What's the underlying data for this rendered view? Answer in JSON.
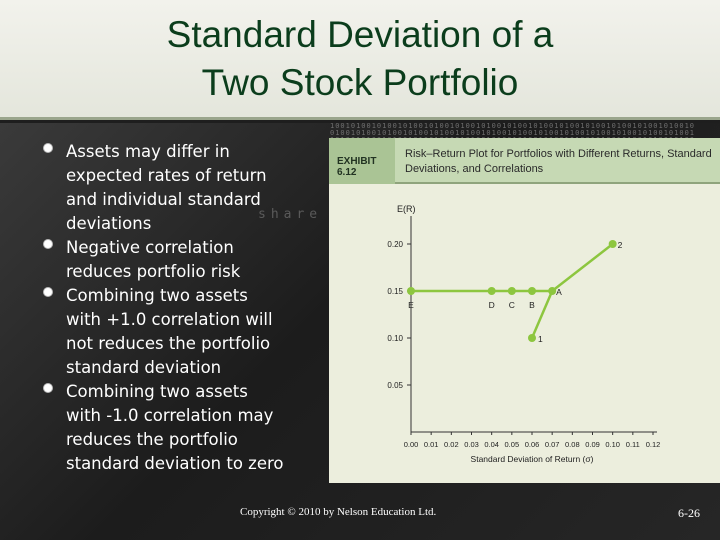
{
  "slide": {
    "title_line1": "Standard Deviation of a",
    "title_line2": "Two Stock Portfolio",
    "background_word": "share",
    "bullets": [
      "Assets may differ in\nexpected rates of return\nand individual standard\ndeviations",
      "Negative correlation\nreduces portfolio risk",
      "Combining two assets\nwith +1.0 correlation will\nnot  reduces the portfolio\nstandard deviation",
      "Combining two assets\nwith -1.0 correlation may\nreduces the portfolio\nstandard deviation to zero"
    ],
    "footer": {
      "copyright": "Copyright © 2010 by Nelson Education Ltd.",
      "page_number": "6-26"
    }
  },
  "exhibit": {
    "number": "EXHIBIT 6.12",
    "title": "Risk–Return Plot for Portfolios with Different Returns, Standard Deviations, and Correlations"
  },
  "colors": {
    "line": "#8dc63f",
    "axis": "#333333",
    "panel": "#eceedd",
    "header": "#c6d9b4",
    "title_text": "#0b3d1c"
  },
  "chart_data": {
    "type": "line",
    "title": "",
    "xlabel": "Standard Deviation of Return (σ)",
    "ylabel": "E(R)",
    "xlim": [
      0,
      0.12
    ],
    "ylim": [
      0,
      0.2
    ],
    "xticks": [
      "0.00",
      "0.01",
      "0.02",
      "0.03",
      "0.04",
      "0.05",
      "0.06",
      "0.07",
      "0.08",
      "0.09",
      "0.10",
      "0.11",
      "0.12"
    ],
    "yticks": [
      "0.05",
      "0.10",
      "0.15",
      "0.20"
    ],
    "series": [
      {
        "points": [
          {
            "label": "E",
            "x": 0.0,
            "y": 0.15
          },
          {
            "label": "D",
            "x": 0.04,
            "y": 0.15
          },
          {
            "label": "C",
            "x": 0.05,
            "y": 0.15
          },
          {
            "label": "B",
            "x": 0.06,
            "y": 0.15
          },
          {
            "label": "A",
            "x": 0.07,
            "y": 0.15
          },
          {
            "label": "2",
            "x": 0.1,
            "y": 0.2
          }
        ]
      },
      {
        "points": [
          {
            "label": "1",
            "x": 0.06,
            "y": 0.1
          },
          {
            "label": "A",
            "x": 0.07,
            "y": 0.15
          }
        ]
      }
    ],
    "grid": false
  }
}
